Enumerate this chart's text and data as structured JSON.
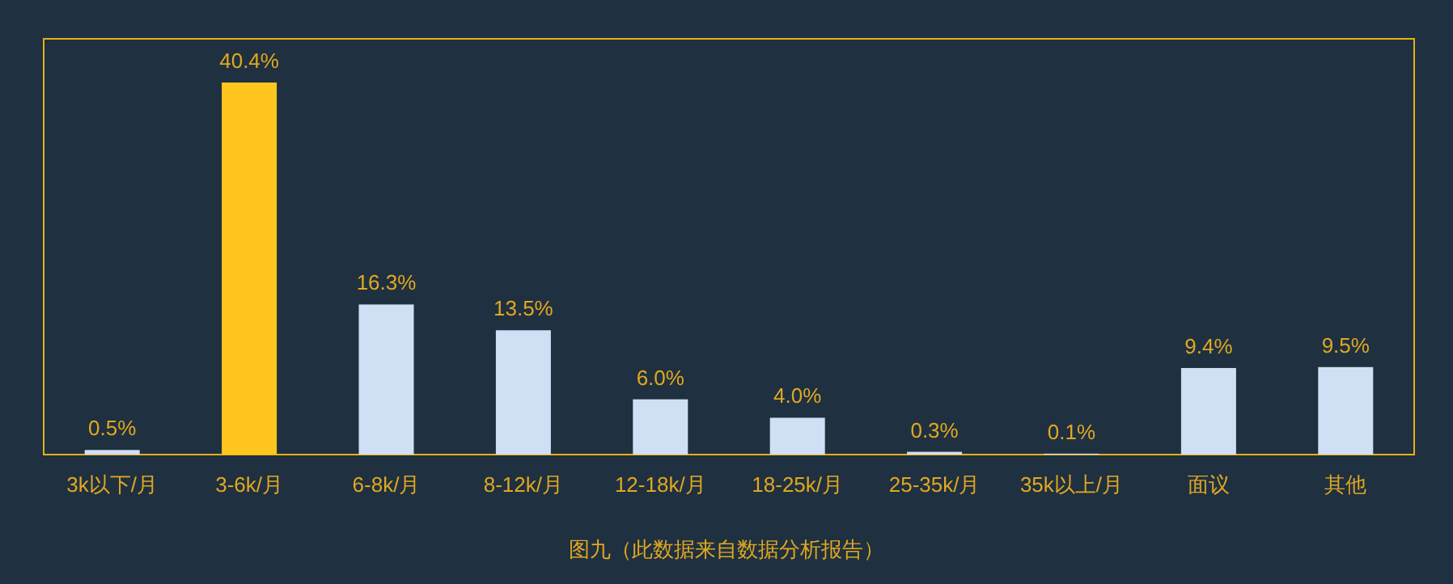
{
  "chart_data": {
    "type": "bar",
    "categories": [
      "3k以下/月",
      "3-6k/月",
      "6-8k/月",
      "8-12k/月",
      "12-18k/月",
      "18-25k/月",
      "25-35k/月",
      "35k以上/月",
      "面议",
      "其他"
    ],
    "values": [
      0.5,
      40.4,
      16.3,
      13.5,
      6.0,
      4.0,
      0.3,
      0.1,
      9.4,
      9.5
    ],
    "colors": [
      "#d0dff3",
      "#ffc61e",
      "#d0dff3",
      "#d0dff3",
      "#d0dff3",
      "#d0dff3",
      "#d0dff3",
      "#d0dff3",
      "#d0dff3",
      "#d0dff3"
    ],
    "value_labels": [
      "0.5%",
      "40.4%",
      "16.3%",
      "13.5%",
      "6.0%",
      "4.0%",
      "0.3%",
      "0.1%",
      "9.4%",
      "9.5%"
    ],
    "annotations": [
      "图九（此数据来自数据分析报告）"
    ]
  }
}
